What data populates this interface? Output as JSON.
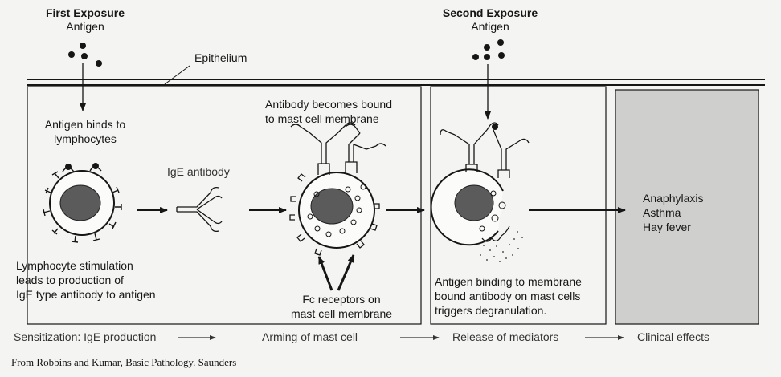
{
  "first_exposure": {
    "title": "First Exposure",
    "antigen_label": "Antigen"
  },
  "second_exposure": {
    "title": "Second Exposure",
    "antigen_label": "Antigen"
  },
  "epithelium_label": "Epithelium",
  "panel1": {
    "binding_text": [
      "Antigen binds to",
      "lymphocytes"
    ],
    "antibody_label": "IgE antibody",
    "stimulation_text": [
      "Lymphocyte stimulation",
      "leads to production of",
      "IgE type antibody to antigen"
    ]
  },
  "panel2": {
    "bound_text": [
      "Antibody becomes bound",
      "to mast cell membrane"
    ],
    "fc_text": [
      "Fc receptors on",
      "mast cell membrane"
    ]
  },
  "panel3": {
    "trigger_text": [
      "Antigen binding to membrane",
      "bound antibody on mast cells",
      "triggers degranulation."
    ]
  },
  "clinical": {
    "effects": [
      "Anaphylaxis",
      "Asthma",
      "Hay fever"
    ]
  },
  "stages": [
    "Sensitization: IgE production",
    "Arming of mast cell",
    "Release of mediators",
    "Clinical effects"
  ],
  "credit": "From Robbins and Kumar, Basic Pathology. Saunders",
  "colors": {
    "ink": "#161616",
    "nucleus": "#5b5b5b",
    "clinical_panel": "#cfcfcd",
    "background": "#f4f4f2"
  }
}
